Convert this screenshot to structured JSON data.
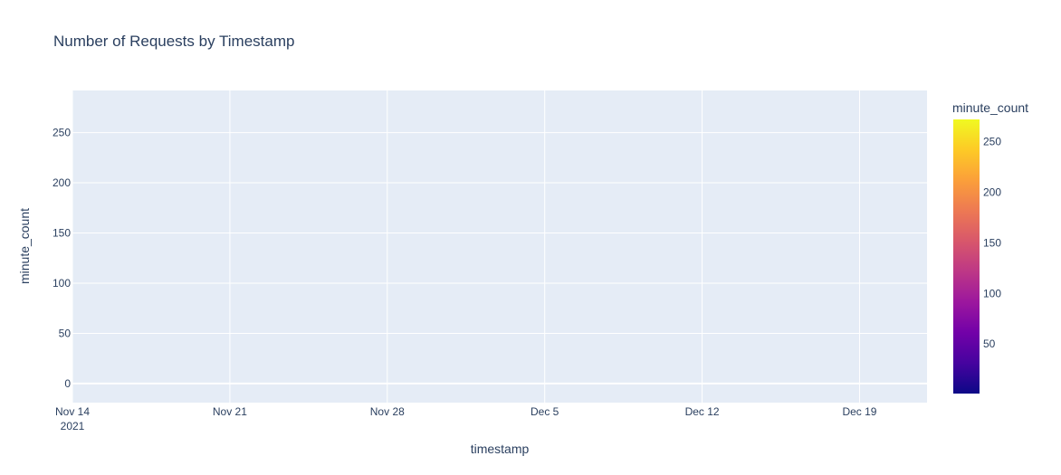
{
  "chart_data": {
    "type": "bar",
    "title": "Number of Requests by Timestamp",
    "xlabel": "timestamp",
    "ylabel": "minute_count",
    "x_axis_type": "date",
    "xlim": [
      "2021-11-14",
      "2021-12-22"
    ],
    "x_ticks": [
      {
        "date": "2021-11-14",
        "label": "Nov 14",
        "sublabel": "2021"
      },
      {
        "date": "2021-11-21",
        "label": "Nov 21"
      },
      {
        "date": "2021-11-28",
        "label": "Nov 28"
      },
      {
        "date": "2021-12-05",
        "label": "Dec 5"
      },
      {
        "date": "2021-12-12",
        "label": "Dec 12"
      },
      {
        "date": "2021-12-19",
        "label": "Dec 19"
      }
    ],
    "ylim": [
      -19,
      292
    ],
    "y_ticks": [
      0,
      50,
      100,
      150,
      200,
      250
    ],
    "grid": true,
    "colorbar": {
      "title": "minute_count",
      "range": [
        1,
        272
      ],
      "ticks": [
        50,
        100,
        150,
        200,
        250
      ],
      "colors": [
        "#0d0887",
        "#46039f",
        "#7201a8",
        "#9c179e",
        "#bd3786",
        "#d8576b",
        "#ed7953",
        "#fb9f3a",
        "#fdca26",
        "#f0f921"
      ]
    },
    "series": []
  },
  "colors": {
    "plot_background": "#e5ecf6",
    "grid": "#ffffff",
    "text": "#2a3f5f"
  }
}
